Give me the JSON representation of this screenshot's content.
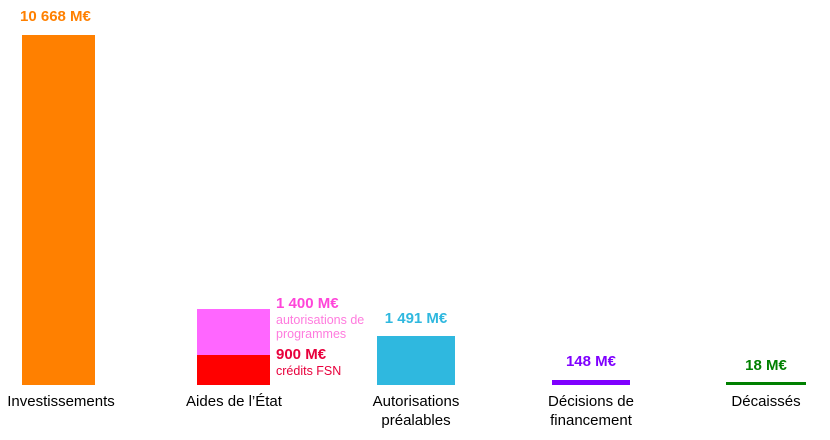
{
  "chart_data": {
    "type": "bar",
    "title": "",
    "unit": "M€",
    "grid": false,
    "legend_position": "none",
    "axes_visible": false,
    "ylim": [
      0,
      10668
    ],
    "categories": [
      "Investissements",
      "Aides de l’État",
      "Autorisations préalables",
      "Décisions de financement",
      "Décaissés"
    ],
    "bars": [
      {
        "category": "Investissements",
        "value_label": "10 668 M€",
        "label_color": "#FF8000",
        "segments": [
          {
            "name": "investissements",
            "value": 10668,
            "color": "#FF8000"
          }
        ]
      },
      {
        "category": "Aides de l’État",
        "segments": [
          {
            "name": "autorisations-de-programmes",
            "value": 1400,
            "color": "#FF66FF",
            "value_label": "1 400 M€",
            "label_color": "#FF45D9",
            "sublabel": "autorisations de programmes",
            "sublabel_color": "#FF7BDE"
          },
          {
            "name": "credits-fsn",
            "value": 900,
            "color": "#FF0000",
            "value_label": "900 M€",
            "label_color": "#E8003C",
            "sublabel": "crédits FSN",
            "sublabel_color": "#E8003C"
          }
        ]
      },
      {
        "category": "Autorisations préalables",
        "value_label": "1 491 M€",
        "label_color": "#2FB8DF",
        "segments": [
          {
            "name": "autorisations-prealables",
            "value": 1491,
            "color": "#2FB8DF"
          }
        ]
      },
      {
        "category": "Décisions de financement",
        "value_label": "148 M€",
        "label_color": "#7F00FF",
        "segments": [
          {
            "name": "decisions-de-financement",
            "value": 148,
            "color": "#7F00FF"
          }
        ]
      },
      {
        "category": "Décaissés",
        "value_label": "18 M€",
        "label_color": "#008000",
        "segments": [
          {
            "name": "decaisses",
            "value": 18,
            "color": "#008000"
          }
        ]
      }
    ]
  }
}
